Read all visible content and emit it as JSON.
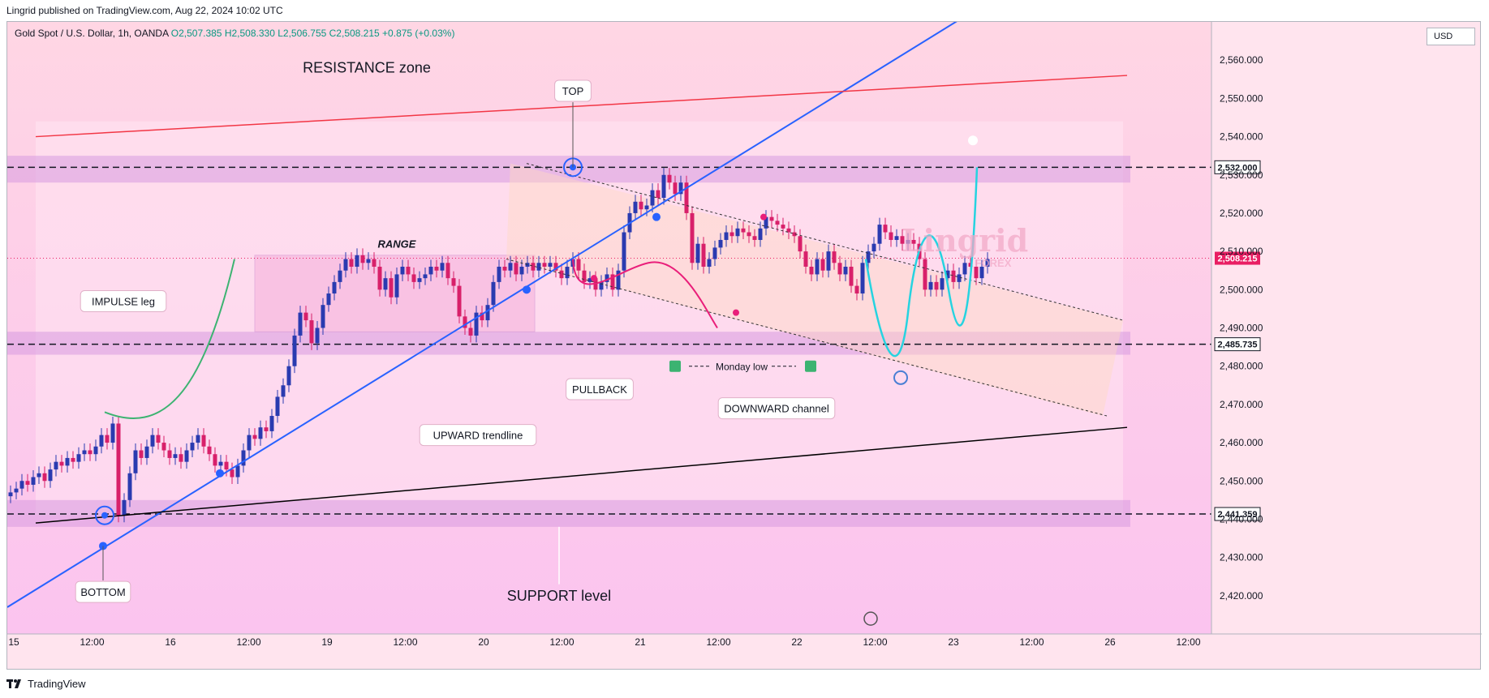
{
  "publisher_line": "Lingrid published on TradingView.com, Aug 22, 2024 10:02 UTC",
  "symbol": {
    "name": "Gold Spot / U.S. Dollar, 1h, OANDA",
    "open": "O2,507.385",
    "high": "H2,508.330",
    "low": "L2,506.755",
    "close": "C2,508.215",
    "change": "+0.875 (+0.03%)"
  },
  "currency": "USD",
  "footer_brand": "TradingView",
  "watermark": {
    "main": "Lingrid",
    "sub": "FOREX"
  },
  "annotations": {
    "resistance": "RESISTANCE zone",
    "support": "SUPPORT level",
    "top": "TOP",
    "bottom": "BOTTOM",
    "range": "RANGE",
    "impulse": "IMPULSE leg",
    "pullback": "PULLBACK",
    "upward": "UPWARD trendline",
    "downward": "DOWNWARD channel",
    "monday": "Monday low"
  },
  "colors": {
    "up_candle": "#2a3bb0",
    "down_candle": "#d8206a",
    "trendline_blue": "#2962ff",
    "resistance_red": "#f23645",
    "projection_cyan": "#26d3e0",
    "pullback_magenta": "#e91e7a",
    "impulse_green": "#3cb371",
    "zone_purple": "#d79ae0",
    "price_line": "#e91e63"
  },
  "chart_data": {
    "type": "candlestick",
    "instrument": "Gold Spot / U.S. Dollar",
    "timeframe": "1h",
    "ylim": [
      2410,
      2570
    ],
    "y_ticks": [
      2420,
      2430,
      2440,
      2450,
      2460,
      2470,
      2480,
      2490,
      2500,
      2510,
      2520,
      2530,
      2540,
      2550,
      2560
    ],
    "y_tick_labels": [
      "2,420.000",
      "2,430.000",
      "2,440.000",
      "2,450.000",
      "2,460.000",
      "2,470.000",
      "2,480.000",
      "2,490.000",
      "2,500.000",
      "2,510.000",
      "2,520.000",
      "2,530.000",
      "2,540.000",
      "2,550.000",
      "2,560.000"
    ],
    "x_tick_labels": [
      "15",
      "12:00",
      "16",
      "12:00",
      "19",
      "12:00",
      "20",
      "12:00",
      "21",
      "12:00",
      "22",
      "12:00",
      "23",
      "12:00",
      "26",
      "12:00"
    ],
    "price_markers": [
      {
        "value": 2532.0,
        "label": "2,532.000",
        "style": "dashed"
      },
      {
        "value": 2485.735,
        "label": "2,485.735",
        "style": "dashed"
      },
      {
        "value": 2441.359,
        "label": "2,441.359",
        "style": "dashed"
      },
      {
        "value": 2508.215,
        "label": "2,508.215",
        "style": "current"
      }
    ],
    "zones": [
      {
        "name": "resistance",
        "from": 2528,
        "to": 2535
      },
      {
        "name": "range-bottom",
        "from": 2483,
        "to": 2489
      },
      {
        "name": "support",
        "from": 2438,
        "to": 2445
      }
    ],
    "closes": [
      2447,
      2448,
      2450,
      2449,
      2451,
      2452,
      2450,
      2453,
      2455,
      2454,
      2456,
      2455,
      2457,
      2458,
      2457,
      2459,
      2462,
      2460,
      2465,
      2441,
      2445,
      2452,
      2458,
      2456,
      2459,
      2462,
      2460,
      2458,
      2456,
      2457,
      2455,
      2458,
      2460,
      2462,
      2459,
      2457,
      2454,
      2455,
      2453,
      2451,
      2454,
      2458,
      2462,
      2461,
      2464,
      2463,
      2467,
      2472,
      2475,
      2480,
      2488,
      2494,
      2492,
      2486,
      2490,
      2496,
      2499,
      2502,
      2505,
      2508,
      2506,
      2509,
      2507,
      2508,
      2506,
      2500,
      2503,
      2498,
      2504,
      2506,
      2504,
      2502,
      2503,
      2504,
      2506,
      2505,
      2507,
      2503,
      2501,
      2493,
      2490,
      2488,
      2494,
      2492,
      2496,
      2502,
      2506,
      2505,
      2507,
      2504,
      2506,
      2507,
      2505,
      2507,
      2506,
      2507,
      2505,
      2503,
      2506,
      2508,
      2505,
      2502,
      2503,
      2500,
      2502,
      2504,
      2500,
      2505,
      2515,
      2520,
      2523,
      2521,
      2522,
      2526,
      2524,
      2530,
      2528,
      2525,
      2528,
      2520,
      2507,
      2512,
      2506,
      2508,
      2511,
      2513,
      2515,
      2514,
      2516,
      2515,
      2514,
      2513,
      2516,
      2519,
      2518,
      2517,
      2516,
      2515,
      2514,
      2510,
      2506,
      2504,
      2508,
      2505,
      2510,
      2507,
      2504,
      2506,
      2501,
      2499,
      2507,
      2510,
      2512,
      2517,
      2515,
      2513,
      2514,
      2512,
      2513,
      2512,
      2508,
      2500,
      2502,
      2500,
      2503,
      2505,
      2502,
      2504,
      2507,
      2506,
      2503,
      2506,
      2508
    ],
    "projection_path": [
      [
        2508,
        0
      ],
      [
        2482,
        11
      ],
      [
        2505,
        20
      ],
      [
        2494,
        30
      ],
      [
        2532,
        40
      ]
    ]
  }
}
